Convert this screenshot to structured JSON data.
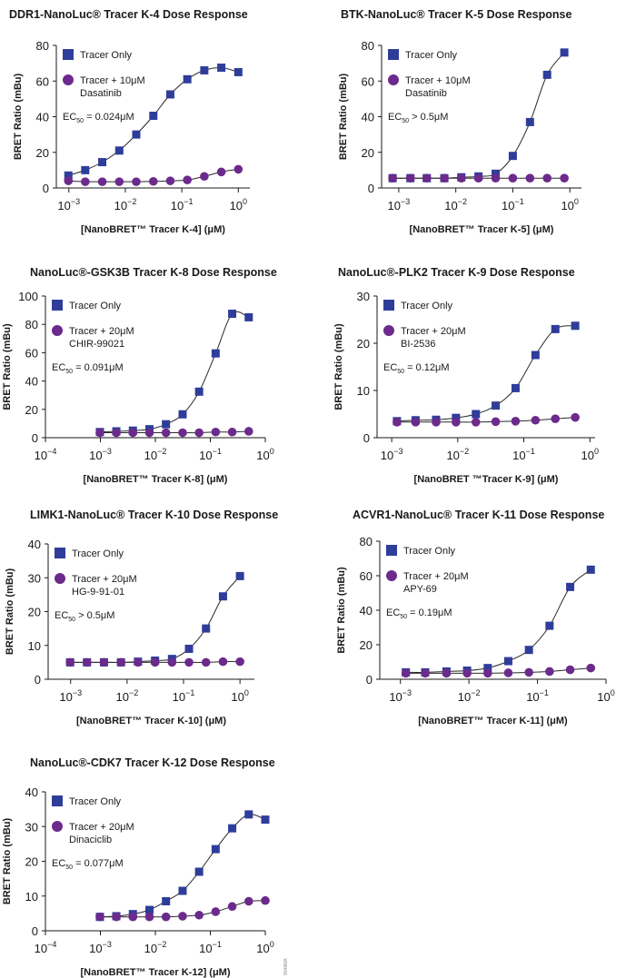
{
  "colors": {
    "tracer_only": "#2f3d9a",
    "tracer_plus": "#6b2a8c",
    "axis": "#1a1a1a",
    "curve": "#2a2a2a"
  },
  "doc_code": "9048MA",
  "chart_data": [
    {
      "type": "scatter",
      "title": "DDR1-NanoLuc® Tracer K-4 Dose Response",
      "xlabel": "[NanoBRET™ Tracer K-4] (μM)",
      "ylabel": "BRET Ratio (mBu)",
      "x_scale": "log",
      "xlim": [
        0.0006,
        1.6
      ],
      "ylim": [
        0,
        80
      ],
      "x_ticks": [
        "10^-3",
        "10^-2",
        "10^-1",
        "10^0"
      ],
      "y_ticks": [
        0,
        20,
        40,
        60,
        80
      ],
      "ec50": "EC50 = 0.024μM",
      "series": [
        {
          "name": "Tracer Only",
          "marker": "square",
          "x": [
            0.00098,
            0.00195,
            0.0039,
            0.0078,
            0.0156,
            0.0313,
            0.0625,
            0.125,
            0.25,
            0.5,
            1.0
          ],
          "y": [
            7,
            10,
            14.5,
            21,
            30,
            40.5,
            52.5,
            61,
            66,
            67.5,
            65
          ]
        },
        {
          "name": "Tracer + 10μM",
          "name_line2": "Dasatinib",
          "marker": "circle",
          "x": [
            0.00098,
            0.00195,
            0.0039,
            0.0078,
            0.0156,
            0.0313,
            0.0625,
            0.125,
            0.25,
            0.5,
            1.0
          ],
          "y": [
            4,
            3.5,
            3.5,
            3.5,
            3.5,
            3.7,
            4,
            4.5,
            6.5,
            9,
            10.5
          ]
        }
      ]
    },
    {
      "type": "scatter",
      "title": "BTK-NanoLuc® Tracer K-5 Dose Response",
      "xlabel": "[NanoBRET™ Tracer K-5] (μM)",
      "ylabel": "BRET Ratio (mBu)",
      "x_scale": "log",
      "xlim": [
        0.0005,
        1.6
      ],
      "ylim": [
        0,
        80
      ],
      "x_ticks": [
        "10^-3",
        "10^-2",
        "10^-1",
        "10^0"
      ],
      "y_ticks": [
        0,
        20,
        40,
        60,
        80
      ],
      "ec50": "EC50 > 0.5μM",
      "series": [
        {
          "name": "Tracer Only",
          "marker": "square",
          "x": [
            0.00078,
            0.0016,
            0.0031,
            0.0063,
            0.0125,
            0.025,
            0.05,
            0.1,
            0.2,
            0.4,
            0.8
          ],
          "y": [
            5.5,
            5.5,
            5.5,
            5.5,
            6,
            6.5,
            8,
            18,
            37,
            63.5,
            76
          ]
        },
        {
          "name": "Tracer + 10μM",
          "name_line2": "Dasatinib",
          "marker": "circle",
          "x": [
            0.00078,
            0.0016,
            0.0031,
            0.0063,
            0.0125,
            0.025,
            0.05,
            0.1,
            0.2,
            0.4,
            0.8
          ],
          "y": [
            5.5,
            5.5,
            5.5,
            5.5,
            5.5,
            5.5,
            5.5,
            5.5,
            5.5,
            5.5,
            5.5
          ]
        }
      ]
    },
    {
      "type": "scatter",
      "title": "NanoLuc®-GSK3B Tracer K-8 Dose Response",
      "xlabel": "[NanoBRET™ Tracer K-8] (μM)",
      "ylabel": "BRET Ratio (mBu)",
      "x_scale": "log",
      "xlim": [
        0.0001,
        1.0
      ],
      "ylim": [
        0,
        100
      ],
      "x_ticks": [
        "10^-4",
        "10^-3",
        "10^-2",
        "10^-1",
        "10^0"
      ],
      "y_ticks": [
        0,
        20,
        40,
        60,
        80,
        100
      ],
      "ec50": "EC50 = 0.091μM",
      "series": [
        {
          "name": "Tracer Only",
          "marker": "square",
          "x": [
            0.00098,
            0.00195,
            0.0039,
            0.0078,
            0.0156,
            0.0313,
            0.0625,
            0.125,
            0.25,
            0.5
          ],
          "y": [
            4,
            4.5,
            5,
            6,
            9.5,
            16.5,
            32.5,
            59.5,
            87.5,
            85
          ]
        },
        {
          "name": "Tracer + 20μM",
          "name_line2": "CHIR-99021",
          "marker": "circle",
          "x": [
            0.00098,
            0.00195,
            0.0039,
            0.0078,
            0.0156,
            0.0313,
            0.0625,
            0.125,
            0.25,
            0.5
          ],
          "y": [
            3.5,
            3.5,
            3.5,
            3.5,
            3.5,
            3.5,
            3.5,
            4,
            4,
            4.5
          ]
        }
      ]
    },
    {
      "type": "scatter",
      "title": "NanoLuc®-PLK2 Tracer K-9 Dose Response",
      "xlabel": "[NanoBRET ™Tracer K-9] (μM)",
      "ylabel": "BRET Ratio (mBu)",
      "x_scale": "log",
      "xlim": [
        0.0006,
        1.2
      ],
      "ylim": [
        0,
        30
      ],
      "x_ticks": [
        "10^-3",
        "10^-2",
        "10^-1",
        "10^0"
      ],
      "y_ticks": [
        0,
        10,
        20,
        30
      ],
      "ec50": "EC50 = 0.12μM",
      "series": [
        {
          "name": "Tracer Only",
          "marker": "square",
          "x": [
            0.0012,
            0.0023,
            0.0047,
            0.0094,
            0.0188,
            0.0375,
            0.075,
            0.15,
            0.3,
            0.6
          ],
          "y": [
            3.5,
            3.7,
            3.8,
            4.2,
            5,
            6.8,
            10.5,
            17.5,
            23,
            23.7
          ]
        },
        {
          "name": "Tracer + 20μM",
          "name_line2": "BI-2536",
          "marker": "circle",
          "x": [
            0.0012,
            0.0023,
            0.0047,
            0.0094,
            0.0188,
            0.0375,
            0.075,
            0.15,
            0.3,
            0.6
          ],
          "y": [
            3.3,
            3.3,
            3.3,
            3.3,
            3.3,
            3.4,
            3.5,
            3.7,
            4,
            4.3
          ]
        }
      ]
    },
    {
      "type": "scatter",
      "title": "LIMK1-NanoLuc® Tracer K-10 Dose Response",
      "xlabel": "[NanoBRET™ Tracer K-10] (μM)",
      "ylabel": "BRET Ratio (mBu)",
      "x_scale": "log",
      "xlim": [
        0.0004,
        1.8
      ],
      "ylim": [
        0,
        40
      ],
      "x_ticks": [
        "10^-3",
        "10^-2",
        "10^-1",
        "10^0"
      ],
      "y_ticks": [
        0,
        10,
        20,
        30,
        40
      ],
      "ec50": "EC50 > 0.5μM",
      "series": [
        {
          "name": "Tracer Only",
          "marker": "square",
          "x": [
            0.00098,
            0.00195,
            0.0039,
            0.0078,
            0.0156,
            0.0313,
            0.0625,
            0.125,
            0.25,
            0.5,
            1.0
          ],
          "y": [
            5,
            5,
            5,
            5,
            5.2,
            5.5,
            6,
            9,
            15,
            24.5,
            30.5
          ]
        },
        {
          "name": "Tracer + 20μM",
          "name_line2": "HG-9-91-01",
          "marker": "circle",
          "x": [
            0.00098,
            0.00195,
            0.0039,
            0.0078,
            0.0156,
            0.0313,
            0.0625,
            0.125,
            0.25,
            0.5,
            1.0
          ],
          "y": [
            5,
            5,
            5,
            5,
            5,
            5,
            5,
            5,
            5,
            5.2,
            5.2
          ]
        }
      ]
    },
    {
      "type": "scatter",
      "title": "ACVR1-NanoLuc® Tracer K-11 Dose Response",
      "xlabel": "[NanoBRET™ Tracer K-11] (μM)",
      "ylabel": "BRET Ratio (mBu)",
      "x_scale": "log",
      "xlim": [
        0.0005,
        1.0
      ],
      "ylim": [
        0,
        80
      ],
      "x_ticks": [
        "10^-3",
        "10^-2",
        "10^-1",
        "10^0"
      ],
      "y_ticks": [
        0,
        20,
        40,
        60,
        80
      ],
      "ec50": "EC50 = 0.19μM",
      "series": [
        {
          "name": "Tracer Only",
          "marker": "square",
          "x": [
            0.0012,
            0.0023,
            0.0047,
            0.0094,
            0.0188,
            0.0375,
            0.075,
            0.15,
            0.3,
            0.6
          ],
          "y": [
            4,
            4,
            4.5,
            5,
            6.5,
            10.5,
            17,
            31,
            53.5,
            63.5
          ]
        },
        {
          "name": "Tracer + 20μM",
          "name_line2": "APY-69",
          "marker": "circle",
          "x": [
            0.0012,
            0.0023,
            0.0047,
            0.0094,
            0.0188,
            0.0375,
            0.075,
            0.15,
            0.3,
            0.6
          ],
          "y": [
            3.5,
            3.5,
            3.5,
            3.5,
            3.5,
            3.7,
            4,
            4.5,
            5.5,
            6.5
          ]
        }
      ]
    },
    {
      "type": "scatter",
      "title": "NanoLuc®-CDK7 Tracer K-12 Dose Response",
      "xlabel": "[NanoBRET™ Tracer K-12] (μM)",
      "ylabel": "BRET Ratio (mBu)",
      "x_scale": "log",
      "xlim": [
        0.0001,
        1.0
      ],
      "ylim": [
        0,
        40
      ],
      "x_ticks": [
        "10^-4",
        "10^-3",
        "10^-2",
        "10^-1",
        "10^0"
      ],
      "y_ticks": [
        0,
        10,
        20,
        30,
        40
      ],
      "ec50": "EC50 = 0.077μM",
      "series": [
        {
          "name": "Tracer Only",
          "marker": "square",
          "x": [
            0.00098,
            0.00195,
            0.0039,
            0.0078,
            0.0156,
            0.0313,
            0.0625,
            0.125,
            0.25,
            0.5,
            1.0
          ],
          "y": [
            4,
            4.2,
            4.8,
            6,
            8.5,
            11.5,
            17,
            23.5,
            29.5,
            33.5,
            32
          ]
        },
        {
          "name": "Tracer + 20μM",
          "name_line2": "Dinaciclib",
          "marker": "circle",
          "x": [
            0.00098,
            0.00195,
            0.0039,
            0.0078,
            0.0156,
            0.0313,
            0.0625,
            0.125,
            0.25,
            0.5,
            1.0
          ],
          "y": [
            4,
            4,
            4,
            4,
            4,
            4.2,
            4.5,
            5.5,
            7,
            8.5,
            8.7
          ]
        }
      ]
    }
  ]
}
